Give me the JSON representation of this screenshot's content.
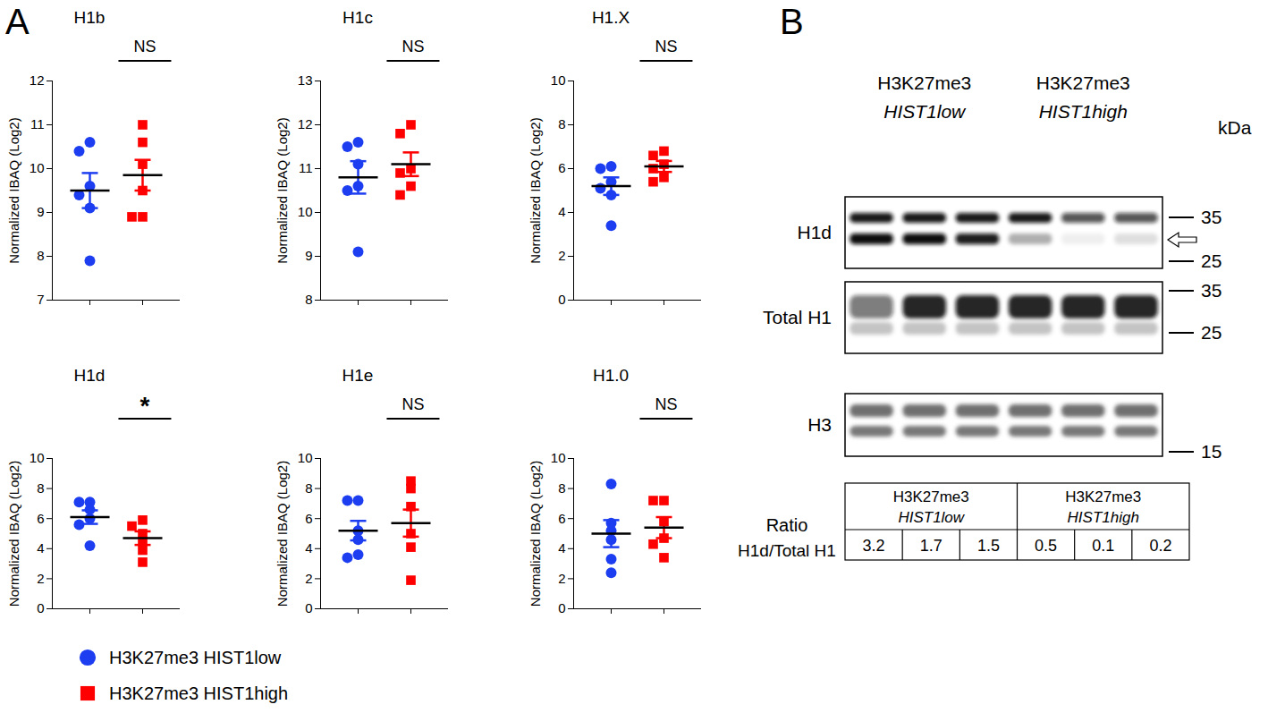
{
  "panel_a_label": "A",
  "chart_data": [
    {
      "type": "scatter",
      "title": "H1b",
      "ylabel": "Normalized IBAQ (Log2)",
      "ylim": [
        7,
        12
      ],
      "yticks": [
        7,
        8,
        9,
        10,
        11,
        12
      ],
      "tick_labels": "y",
      "annotation": "NS",
      "legend": "bottom",
      "series": [
        {
          "name": "H3K27me3 HIST1low",
          "color": "#1d3ef0",
          "marker": "circle",
          "values": [
            10.6,
            10.4,
            9.6,
            9.4,
            9.1,
            7.9
          ],
          "mean": 9.5,
          "error": 0.4
        },
        {
          "name": "H3K27me3 HIST1high",
          "color": "#ff0000",
          "marker": "square",
          "values": [
            11.0,
            10.6,
            10.1,
            9.5,
            8.9,
            8.9
          ],
          "mean": 9.85,
          "error": 0.35
        }
      ]
    },
    {
      "type": "scatter",
      "title": "H1c",
      "ylabel": "Normalized IBAQ (Log2)",
      "ylim": [
        8,
        13
      ],
      "yticks": [
        8,
        9,
        10,
        11,
        12,
        13
      ],
      "tick_labels": "y",
      "annotation": "NS",
      "legend": "bottom",
      "series": [
        {
          "name": "H3K27me3 HIST1low",
          "color": "#1d3ef0",
          "marker": "circle",
          "values": [
            11.6,
            11.5,
            11.1,
            10.6,
            10.5,
            9.1
          ],
          "mean": 10.8,
          "error": 0.37
        },
        {
          "name": "H3K27me3 HIST1high",
          "color": "#ff0000",
          "marker": "square",
          "values": [
            12.0,
            11.8,
            11.0,
            10.9,
            10.6,
            10.4
          ],
          "mean": 11.1,
          "error": 0.27
        }
      ]
    },
    {
      "type": "scatter",
      "title": "H1.X",
      "ylabel": "Normalized IBAQ (Log2)",
      "ylim": [
        0,
        10
      ],
      "yticks": [
        0,
        2,
        4,
        6,
        8,
        10
      ],
      "tick_labels": "y",
      "annotation": "NS",
      "legend": "bottom",
      "series": [
        {
          "name": "H3K27me3 HIST1low",
          "color": "#1d3ef0",
          "marker": "circle",
          "values": [
            6.1,
            6.0,
            5.4,
            5.1,
            4.8,
            3.4
          ],
          "mean": 5.2,
          "error": 0.4
        },
        {
          "name": "H3K27me3 HIST1high",
          "color": "#ff0000",
          "marker": "square",
          "values": [
            6.8,
            6.6,
            6.2,
            6.0,
            5.6,
            5.4
          ],
          "mean": 6.1,
          "error": 0.25
        }
      ]
    },
    {
      "type": "scatter",
      "title": "H1d",
      "ylabel": "Normalized IBAQ (Log2)",
      "ylim": [
        0,
        10
      ],
      "yticks": [
        0,
        2,
        4,
        6,
        8,
        10
      ],
      "tick_labels": "y",
      "annotation": "*",
      "legend": "bottom",
      "series": [
        {
          "name": "H3K27me3 HIST1low",
          "color": "#1d3ef0",
          "marker": "circle",
          "values": [
            7.1,
            7.1,
            6.6,
            6.0,
            5.6,
            4.2
          ],
          "mean": 6.1,
          "error": 0.45
        },
        {
          "name": "H3K27me3 HIST1high",
          "color": "#ff0000",
          "marker": "square",
          "values": [
            5.9,
            5.5,
            5.0,
            4.5,
            3.9,
            3.1
          ],
          "mean": 4.7,
          "error": 0.45
        }
      ]
    },
    {
      "type": "scatter",
      "title": "H1e",
      "ylabel": "Normalized IBAQ (Log2)",
      "ylim": [
        0,
        10
      ],
      "yticks": [
        0,
        2,
        4,
        6,
        8,
        10
      ],
      "tick_labels": "y",
      "annotation": "NS",
      "legend": "bottom",
      "series": [
        {
          "name": "H3K27me3 HIST1low",
          "color": "#1d3ef0",
          "marker": "circle",
          "values": [
            7.2,
            7.2,
            5.2,
            4.6,
            3.6,
            3.4
          ],
          "mean": 5.2,
          "error": 0.65
        },
        {
          "name": "H3K27me3 HIST1high",
          "color": "#ff0000",
          "marker": "square",
          "values": [
            8.5,
            8.0,
            6.8,
            5.0,
            4.1,
            1.9
          ],
          "mean": 5.7,
          "error": 0.9
        }
      ]
    },
    {
      "type": "scatter",
      "title": "H1.0",
      "ylabel": "Normalized IBAQ (Log2)",
      "ylim": [
        0,
        10
      ],
      "yticks": [
        0,
        2,
        4,
        6,
        8,
        10
      ],
      "tick_labels": "y",
      "annotation": "NS",
      "legend": "bottom",
      "series": [
        {
          "name": "H3K27me3 HIST1low",
          "color": "#1d3ef0",
          "marker": "circle",
          "values": [
            8.3,
            5.7,
            5.2,
            4.6,
            3.3,
            2.4
          ],
          "mean": 5.0,
          "error": 0.9
        },
        {
          "name": "H3K27me3 HIST1high",
          "color": "#ff0000",
          "marker": "square",
          "values": [
            7.2,
            7.2,
            5.8,
            4.7,
            4.3,
            3.4
          ],
          "mean": 5.4,
          "error": 0.7
        }
      ]
    }
  ],
  "western_blot": {
    "label": "B",
    "groups": [
      "H3K27me3 HIST1low",
      "H3K27me3 HIST1high"
    ],
    "kda_label": "kDa",
    "blots": [
      {
        "name": "H1d",
        "markers": [
          35,
          25
        ]
      },
      {
        "name": "Total H1",
        "markers": [
          35,
          25
        ]
      },
      {
        "name": "H3",
        "markers": [
          15
        ]
      }
    ],
    "ratio_label": "Ratio H1d/Total H1",
    "ratios": [
      3.2,
      1.7,
      1.5,
      0.5,
      0.1,
      0.2
    ]
  }
}
